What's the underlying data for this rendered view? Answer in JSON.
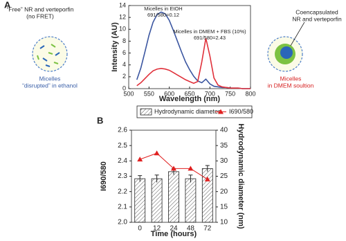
{
  "panels": [
    "A",
    "B"
  ],
  "side_texts": {
    "left": [
      "“Free” NR and verteporfin",
      "(no FRET)",
      "Micelles",
      "“disrupted” in ethanol"
    ],
    "right": [
      "Coencapsulated",
      "NR and verteporfin",
      "Micelles",
      "in DMEM soultion"
    ]
  },
  "chart_data": [
    {
      "type": "line",
      "xlabel": "Wavelength (nm)",
      "ylabel": "Intensity (AU)",
      "x": [
        520,
        530,
        540,
        550,
        560,
        570,
        580,
        590,
        600,
        610,
        620,
        630,
        640,
        650,
        660,
        670,
        680,
        690,
        700,
        710,
        720,
        730,
        740,
        750,
        760,
        770,
        780,
        790,
        800
      ],
      "series": [
        {
          "name": "Micelles in EtOH",
          "color": "#3a55a0",
          "values": [
            1.5,
            3.5,
            6.2,
            9,
            11.2,
            12.5,
            12.9,
            12.6,
            11.5,
            9.8,
            8,
            6.2,
            4.5,
            3.2,
            2.1,
            1.3,
            1.0,
            1.6,
            0.8,
            0.4,
            0.3,
            0.2,
            0.2,
            0.1,
            0.1,
            0.1,
            0,
            0,
            0
          ]
        },
        {
          "name": "Micelles in DMEM + FBS (10%)",
          "color": "#e0303a",
          "values": [
            0.5,
            1,
            1.7,
            2.4,
            3,
            3.3,
            3.4,
            3.3,
            3.1,
            2.7,
            2.3,
            1.9,
            1.5,
            1.2,
            0.9,
            1.2,
            4.5,
            8.5,
            5.5,
            1.8,
            0.6,
            0.3,
            0.2,
            0.1,
            0.1,
            0.1,
            0,
            0,
            0
          ]
        }
      ],
      "annotations": [
        "691/580=0.12",
        "691/580=2.43"
      ],
      "xlim": [
        500,
        800
      ],
      "xticks": [
        500,
        550,
        600,
        650,
        700,
        750,
        800
      ],
      "ylim": [
        0,
        14
      ],
      "yticks": [
        0,
        2,
        4,
        6,
        8,
        10,
        12,
        14
      ]
    },
    {
      "type": "bar",
      "xlabel": "Time (hours)",
      "ylabel": "I690/580",
      "y2label": "Hydrodynamic diameter (nm)",
      "categories": [
        "0",
        "12",
        "24",
        "48",
        "72"
      ],
      "series": [
        {
          "name": "Hydrodynamic diameter",
          "type": "bar",
          "axis": "y2",
          "color": "#555555",
          "values": [
            24.2,
            24.2,
            26.5,
            24.2,
            27.5
          ],
          "errors": [
            1.0,
            1.2,
            1.0,
            1.2,
            1.0
          ]
        },
        {
          "name": "I690/580",
          "type": "line",
          "axis": "y",
          "color": "#e02020",
          "values": [
            2.41,
            2.45,
            2.35,
            2.35,
            2.28
          ]
        }
      ],
      "ylim": [
        2.0,
        2.6
      ],
      "yticks": [
        {
          "value": 2.0,
          "label": "2.0"
        },
        2.1,
        2.2,
        2.3,
        2.4,
        2.5,
        2.6
      ],
      "y2lim": [
        10,
        40
      ],
      "y2ticks": [
        10,
        15,
        20,
        25,
        30,
        35,
        40
      ]
    }
  ]
}
